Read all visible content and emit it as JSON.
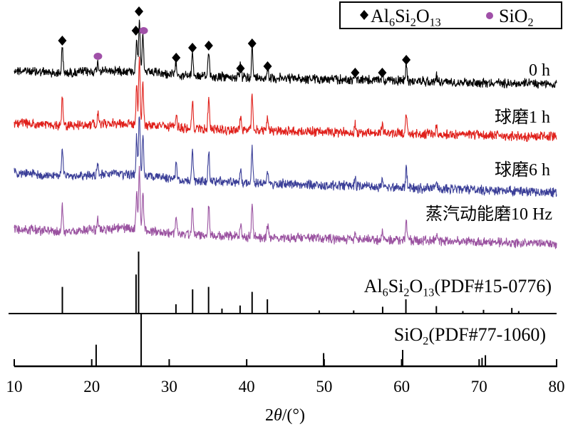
{
  "chart_data": {
    "type": "line",
    "xlabel": "2θ/(°)",
    "xlabel_parts": {
      "pre": "2",
      "italic": "θ",
      "post": "/(°)"
    },
    "xlim": [
      10,
      80
    ],
    "xticks": [
      10,
      20,
      30,
      40,
      50,
      60,
      70,
      80
    ],
    "grid": false,
    "legend": {
      "placement": "top-right",
      "entries": [
        {
          "marker": "diamond",
          "color": "#000000",
          "label": "Al6Si2O13",
          "parts": [
            [
              "Al",
              ""
            ],
            [
              "6",
              "sub"
            ],
            [
              "Si",
              ""
            ],
            [
              "2",
              "sub"
            ],
            [
              "O",
              ""
            ],
            [
              "13",
              "sub"
            ]
          ]
        },
        {
          "marker": "circle",
          "color": "#a050a8",
          "label": "SiO2",
          "parts": [
            [
              "SiO",
              ""
            ],
            [
              "2",
              "sub"
            ]
          ]
        }
      ]
    },
    "sample_peaks": [
      {
        "x": 16.2,
        "rel": 45
      },
      {
        "x": 20.8,
        "rel": 16
      },
      {
        "x": 25.8,
        "rel": 60
      },
      {
        "x": 26.15,
        "rel": 100
      },
      {
        "x": 26.6,
        "rel": 65
      },
      {
        "x": 30.9,
        "rel": 24
      },
      {
        "x": 33.0,
        "rel": 45
      },
      {
        "x": 35.1,
        "rel": 50
      },
      {
        "x": 39.2,
        "rel": 22
      },
      {
        "x": 40.7,
        "rel": 55
      },
      {
        "x": 42.7,
        "rel": 20
      },
      {
        "x": 54.0,
        "rel": 12
      },
      {
        "x": 57.5,
        "rel": 14
      },
      {
        "x": 60.6,
        "rel": 30
      },
      {
        "x": 64.5,
        "rel": 10
      }
    ],
    "series": [
      {
        "name": "0 h",
        "color": "#000000"
      },
      {
        "name": "球磨1 h",
        "color": "#e0201b"
      },
      {
        "name": "球磨6 h",
        "color": "#3b3f98"
      },
      {
        "name": "蒸汽动能磨10 Hz",
        "color": "#9a52a0"
      }
    ],
    "phase_markers": {
      "Al6Si2O13": [
        16.2,
        25.7,
        26.1,
        30.9,
        33.0,
        35.1,
        39.2,
        40.7,
        42.7,
        54.0,
        57.5,
        60.6
      ],
      "SiO2": [
        20.8,
        26.7
      ]
    },
    "references": [
      {
        "name": "Al6Si2O13(PDF#15-0776)",
        "parts": [
          [
            "Al",
            ""
          ],
          [
            "6",
            "sub"
          ],
          [
            "Si",
            ""
          ],
          [
            "2",
            "sub"
          ],
          [
            "O",
            ""
          ],
          [
            "13",
            "sub"
          ],
          [
            "(PDF#15-0776)",
            ""
          ]
        ],
        "x": [
          16.21,
          25.72,
          26.05,
          30.87,
          33.02,
          35.08,
          36.81,
          39.15,
          40.7,
          42.67,
          49.36,
          53.81,
          57.55,
          60.55,
          64.48,
          67.9,
          70.57,
          74.22,
          75.11
        ],
        "intensity": [
          43,
          63,
          100,
          15,
          39,
          43,
          8,
          13,
          35,
          23,
          5,
          5,
          11,
          23,
          12,
          4,
          6,
          9,
          4
        ]
      },
      {
        "name": "SiO2(PDF#77-1060)",
        "parts": [
          [
            "SiO",
            ""
          ],
          [
            "2",
            "sub"
          ],
          [
            "(PDF#77-1060)",
            ""
          ]
        ],
        "x": [
          20.57,
          26.38,
          49.93,
          60.13,
          70.38,
          70.81
        ],
        "intensity": [
          41,
          100,
          25,
          31,
          16,
          21
        ]
      }
    ]
  }
}
